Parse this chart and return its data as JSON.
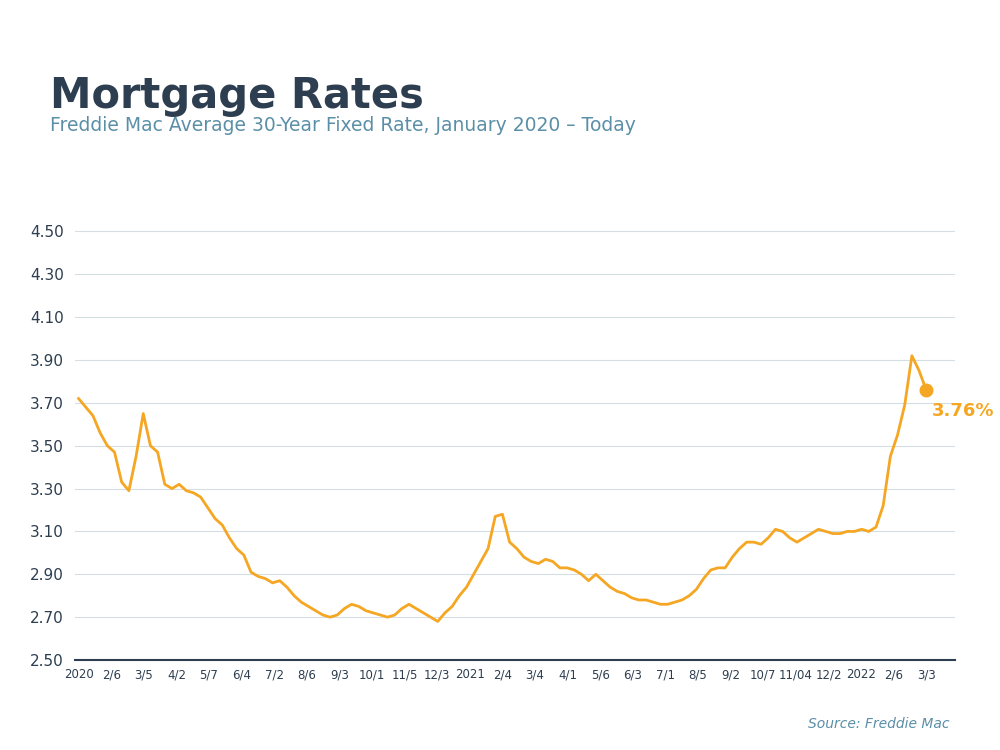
{
  "title": "Mortgage Rates",
  "subtitle": "Freddie Mac Average 30-Year Fixed Rate, January 2020 – Today",
  "source": "Source: Freddie Mac",
  "line_color": "#F5A623",
  "background_color": "#FFFFFF",
  "title_color": "#2d3e50",
  "subtitle_color": "#5b8fa8",
  "source_color": "#5b8fa8",
  "grid_color": "#d5dde5",
  "axis_color": "#2d3e50",
  "ylim": [
    2.5,
    4.6
  ],
  "yticks": [
    2.5,
    2.7,
    2.9,
    3.1,
    3.3,
    3.5,
    3.7,
    3.9,
    4.1,
    4.3,
    4.5
  ],
  "xtick_labels": [
    "2020",
    "2/6",
    "3/5",
    "4/2",
    "5/7",
    "6/4",
    "7/2",
    "8/6",
    "9/3",
    "10/1",
    "11/5",
    "12/3",
    "2021",
    "2/4",
    "3/4",
    "4/1",
    "5/6",
    "6/3",
    "7/1",
    "8/5",
    "9/2",
    "10/7",
    "11/04",
    "12/2",
    "2022",
    "2/6",
    "3/3"
  ],
  "last_value": 3.76,
  "last_label": "3.76%",
  "data": [
    3.72,
    3.68,
    3.64,
    3.56,
    3.5,
    3.47,
    3.33,
    3.29,
    3.45,
    3.65,
    3.5,
    3.47,
    3.32,
    3.3,
    3.32,
    3.29,
    3.28,
    3.26,
    3.21,
    3.16,
    3.13,
    3.07,
    3.02,
    2.99,
    2.91,
    2.89,
    2.88,
    2.86,
    2.87,
    2.84,
    2.8,
    2.77,
    2.75,
    2.73,
    2.71,
    2.7,
    2.71,
    2.74,
    2.76,
    2.75,
    2.73,
    2.72,
    2.71,
    2.7,
    2.71,
    2.74,
    2.76,
    2.74,
    2.72,
    2.7,
    2.68,
    2.72,
    2.75,
    2.8,
    2.84,
    2.9,
    2.96,
    3.02,
    3.17,
    3.18,
    3.05,
    3.02,
    2.98,
    2.96,
    2.95,
    2.97,
    2.96,
    2.93,
    2.93,
    2.92,
    2.9,
    2.87,
    2.9,
    2.87,
    2.84,
    2.82,
    2.81,
    2.79,
    2.78,
    2.78,
    2.77,
    2.76,
    2.76,
    2.77,
    2.78,
    2.8,
    2.83,
    2.88,
    2.92,
    2.93,
    2.93,
    2.98,
    3.02,
    3.05,
    3.05,
    3.04,
    3.07,
    3.11,
    3.1,
    3.07,
    3.05,
    3.07,
    3.09,
    3.11,
    3.1,
    3.09,
    3.09,
    3.1,
    3.1,
    3.11,
    3.1,
    3.12,
    3.22,
    3.45,
    3.55,
    3.69,
    3.92,
    3.85,
    3.76
  ],
  "top_bar_color": "#2db5d7"
}
